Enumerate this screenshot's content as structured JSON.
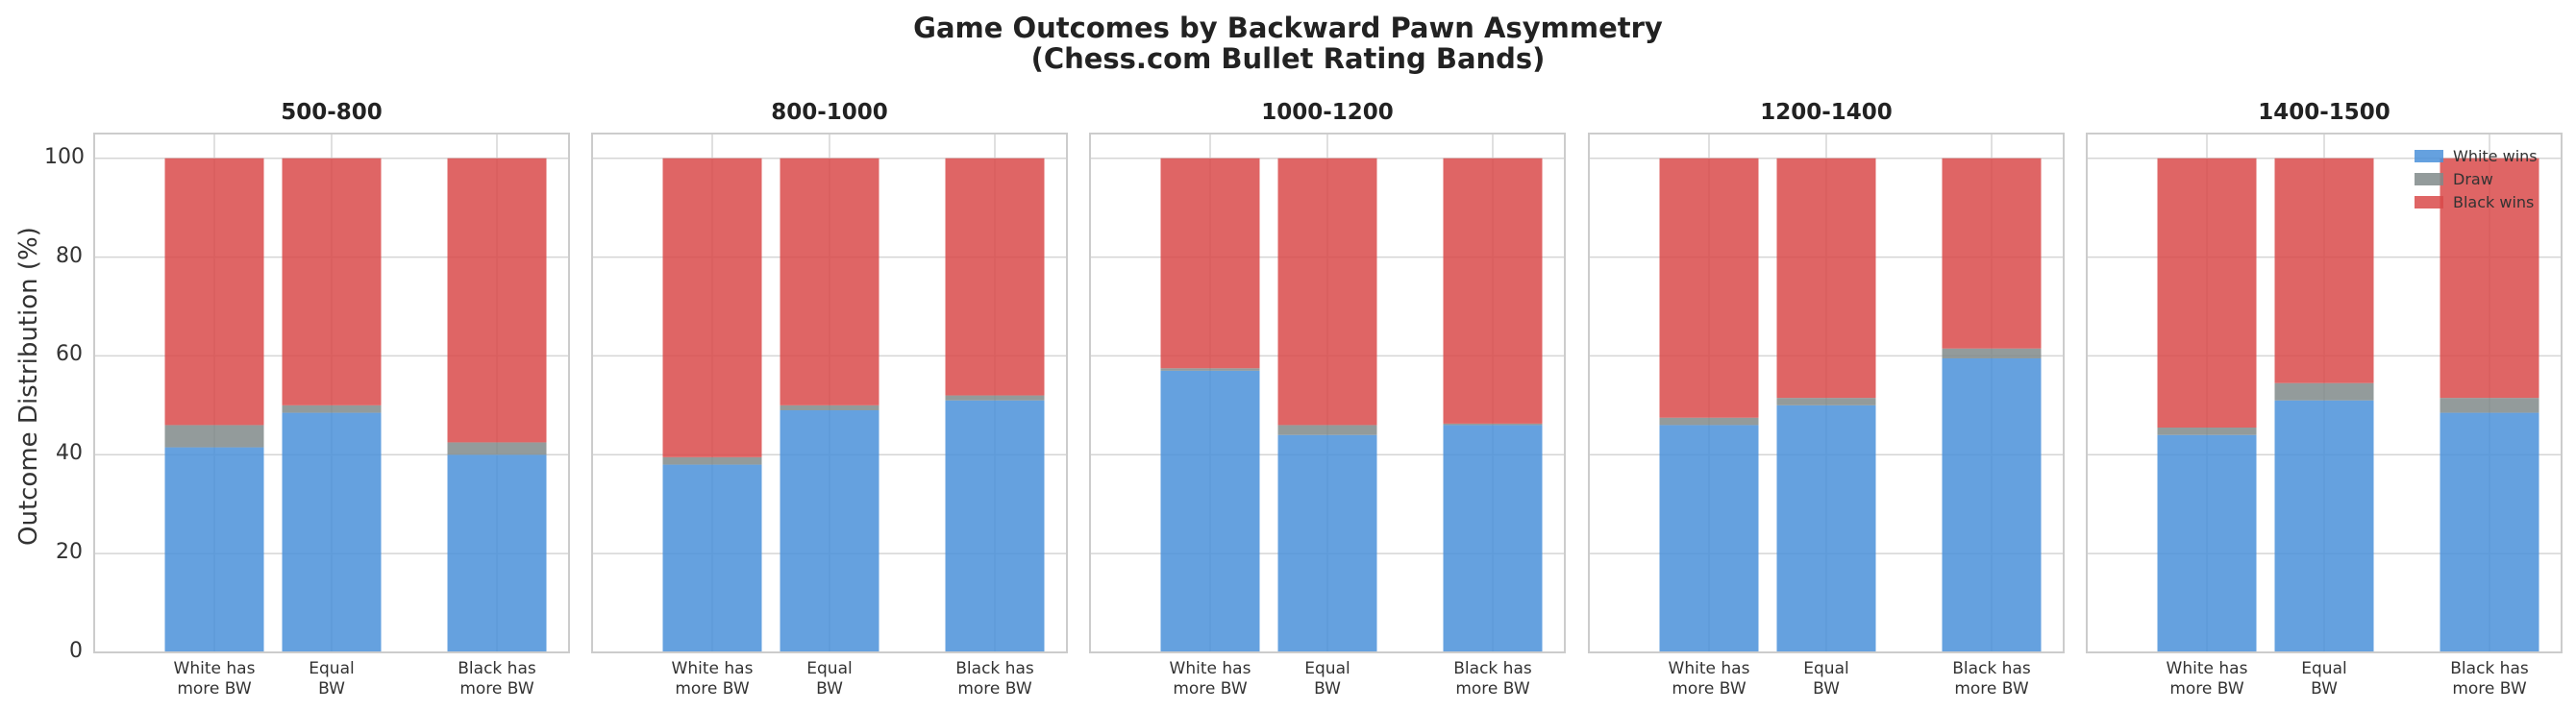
{
  "figure": {
    "title_line1": "Game Outcomes by Backward Pawn Asymmetry",
    "title_line2": "(Chess.com Bullet Rating Bands)"
  },
  "colors": {
    "white_wins": "#4a90d9",
    "draw": "#808a8a",
    "black_wins": "#d94a4a"
  },
  "chart_data": {
    "type": "bar",
    "stacked": true,
    "ylabel": "Outcome Distribution (%)",
    "ylim": [
      0,
      105
    ],
    "yticks": [
      0,
      20,
      40,
      60,
      80,
      100
    ],
    "grid": true,
    "legend_placement": "top-right",
    "legend": [
      "White wins",
      "Draw",
      "Black wins"
    ],
    "categories": [
      {
        "line1": "White has",
        "line2": "more BW"
      },
      {
        "line1": "Equal",
        "line2": "BW"
      },
      {
        "line1": "Black has",
        "line2": "more BW"
      }
    ],
    "panels": [
      {
        "title": "500-800",
        "white_wins": [
          41.5,
          48.5,
          40.0
        ],
        "draw": [
          4.5,
          1.5,
          2.5
        ],
        "black_wins": [
          54.0,
          50.0,
          57.5
        ]
      },
      {
        "title": "800-1000",
        "white_wins": [
          38.0,
          49.0,
          51.0
        ],
        "draw": [
          1.5,
          1.0,
          1.0
        ],
        "black_wins": [
          60.5,
          50.0,
          48.0
        ]
      },
      {
        "title": "1000-1200",
        "white_wins": [
          57.0,
          44.0,
          46.0
        ],
        "draw": [
          0.5,
          2.0,
          0.3
        ],
        "black_wins": [
          42.5,
          54.0,
          53.7
        ]
      },
      {
        "title": "1200-1400",
        "white_wins": [
          46.0,
          50.0,
          59.5
        ],
        "draw": [
          1.5,
          1.5,
          2.0
        ],
        "black_wins": [
          52.5,
          48.5,
          38.5
        ]
      },
      {
        "title": "1400-1500",
        "white_wins": [
          44.0,
          51.0,
          48.5
        ],
        "draw": [
          1.5,
          3.5,
          3.0
        ],
        "black_wins": [
          54.5,
          45.5,
          48.5
        ]
      }
    ]
  }
}
